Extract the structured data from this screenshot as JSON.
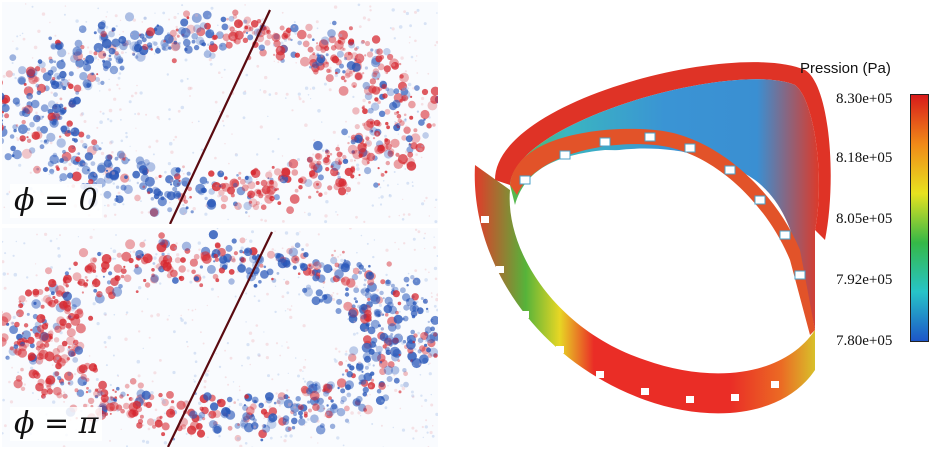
{
  "panels": [
    {
      "label": "ϕ = 0",
      "pattern": "top"
    },
    {
      "label": "ϕ = π",
      "pattern": "bottom"
    }
  ],
  "legend": {
    "title": "Pression (Pa)",
    "ticks": [
      "8.30e+05",
      "8.18e+05",
      "8.05e+05",
      "7.92e+05",
      "7.80e+05"
    ],
    "colors": [
      "#d81b1b",
      "#f08a18",
      "#e7e21f",
      "#35b847",
      "#27c4c8",
      "#1d56c8"
    ]
  },
  "colors": {
    "red": "#d62830",
    "blue": "#2756b8",
    "line": "#5a0a10"
  }
}
